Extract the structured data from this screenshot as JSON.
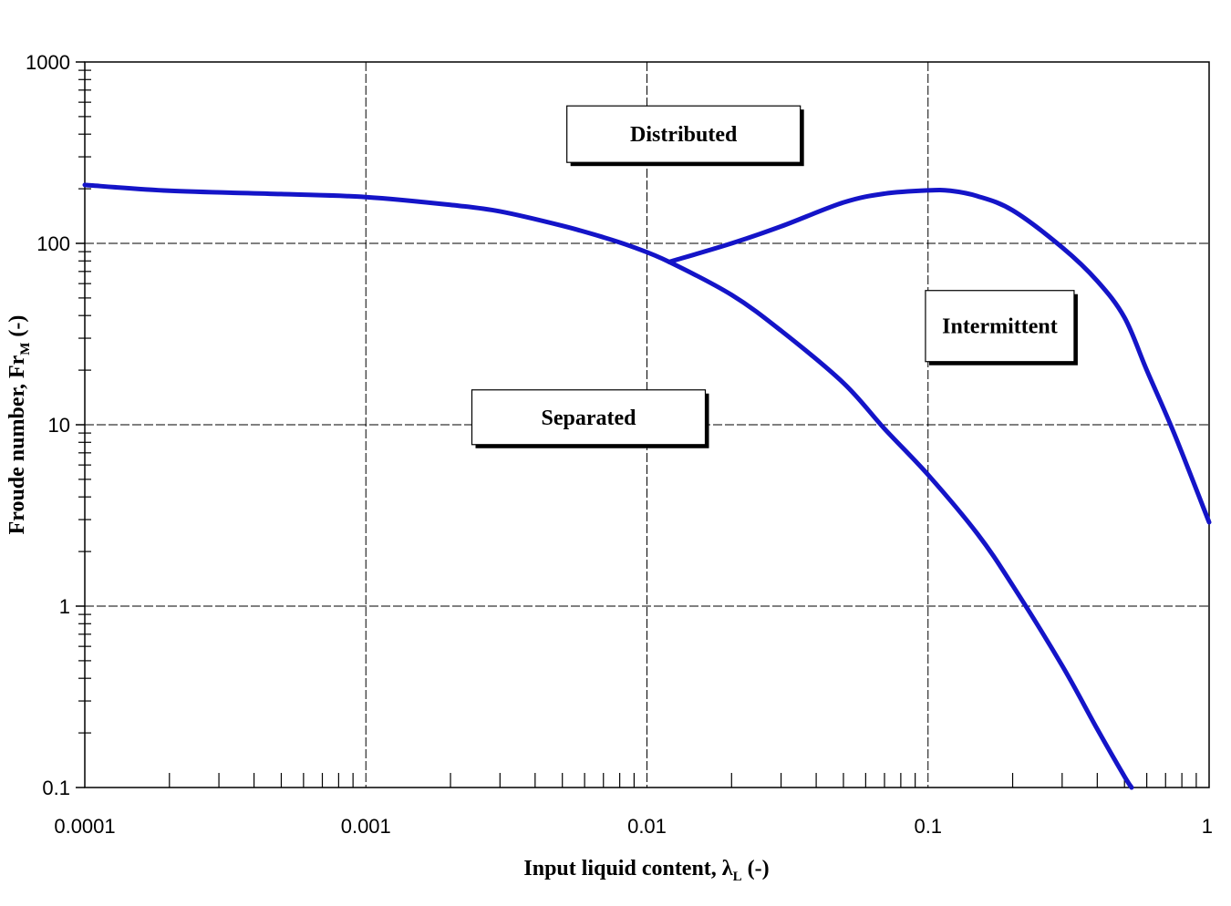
{
  "chart_data": {
    "type": "line",
    "xscale": "log",
    "yscale": "log",
    "xlim": [
      0.0001,
      1
    ],
    "ylim": [
      0.1,
      1000
    ],
    "grid": true,
    "xlabel_main": "Input liquid content, λ",
    "xlabel_sub": "L",
    "xlabel_tail": " (-)",
    "ylabel_main": "Froude number, Fr",
    "ylabel_sub": "M",
    "ylabel_tail": " (-)",
    "x_tick_labels": [
      "0.0001",
      "0.001",
      "0.01",
      "0.1",
      "1"
    ],
    "x_tick_values": [
      0.0001,
      0.001,
      0.01,
      0.1,
      1
    ],
    "y_tick_labels": [
      "0.1",
      "1",
      "10",
      "100",
      "1000"
    ],
    "y_tick_values": [
      0.1,
      1,
      10,
      100,
      1000
    ],
    "line_color": "#1414c8",
    "series": [
      {
        "x": [
          0.0001,
          0.0002,
          0.0005,
          0.001,
          0.002,
          0.003,
          0.005,
          0.007,
          0.009,
          0.012,
          0.02,
          0.03,
          0.05,
          0.07,
          0.1,
          0.15,
          0.2,
          0.3,
          0.4,
          0.5,
          0.53
        ],
        "y": [
          210,
          195,
          187,
          180,
          163,
          150,
          125,
          108,
          95,
          79,
          52,
          33,
          17,
          9.5,
          5.3,
          2.5,
          1.3,
          0.47,
          0.21,
          0.115,
          0.1
        ]
      },
      {
        "x": [
          0.012,
          0.02,
          0.03,
          0.05,
          0.07,
          0.1,
          0.12,
          0.15,
          0.2,
          0.3,
          0.4,
          0.5,
          0.6,
          0.75,
          1
        ],
        "y": [
          79,
          100,
          124,
          168,
          188,
          196,
          195,
          182,
          152,
          95,
          62,
          39,
          20,
          9,
          2.9
        ]
      }
    ],
    "annotations": [
      {
        "text": "Distributed",
        "x": 0.0135,
        "y": 400
      },
      {
        "text": "Intermittent",
        "x": 0.18,
        "y": 35
      },
      {
        "text": "Separated",
        "x": 0.0062,
        "y": 11
      }
    ]
  }
}
